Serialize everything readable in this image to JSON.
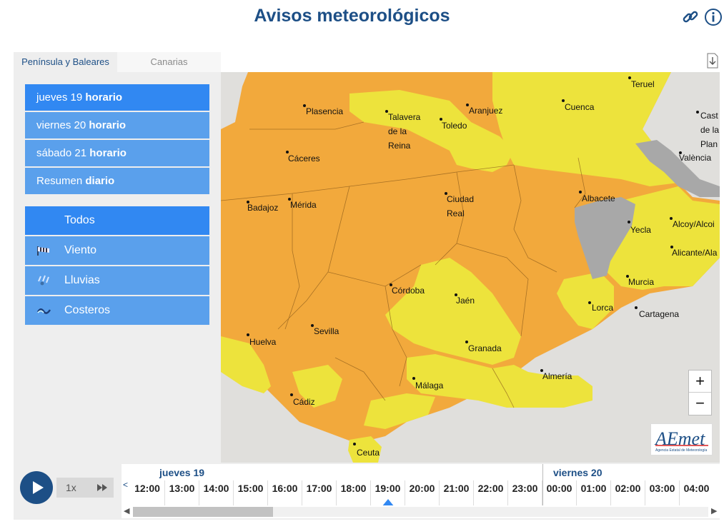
{
  "header": {
    "title": "Avisos meteorológicos"
  },
  "tabs": [
    {
      "label": "Península y Baleares"
    },
    {
      "label": "Canarias"
    }
  ],
  "days": [
    {
      "day": "jueves 19",
      "mode": "horario"
    },
    {
      "day": "viernes 20",
      "mode": "horario"
    },
    {
      "day": "sábado 21",
      "mode": "horario"
    },
    {
      "day": "Resumen",
      "mode": "diario"
    }
  ],
  "types": [
    {
      "label": "Todos",
      "icon": ""
    },
    {
      "label": "Viento",
      "icon": "wind-icon"
    },
    {
      "label": "Lluvias",
      "icon": "rain-icon"
    },
    {
      "label": "Costeros",
      "icon": "wave-icon"
    }
  ],
  "map": {
    "cities": [
      "Teruel",
      "Plasencia",
      "Talavera",
      "de la",
      "Reina",
      "Aranjuez",
      "Toledo",
      "Cuenca",
      "Cast",
      "de la",
      "Plan",
      "València",
      "Cáceres",
      "Ciudad",
      "Real",
      "Albacete",
      "Badajoz",
      "Mérida",
      "Yecla",
      "Alcoy/Alcoi",
      "Alicante/Ala",
      "Córdoba",
      "Jaén",
      "Murcia",
      "Lorca",
      "Cartagena",
      "Sevilla",
      "Huelva",
      "Granada",
      "Almería",
      "Málaga",
      "Cádiz",
      "Ceuta"
    ],
    "zoom_in": "+",
    "zoom_out": "−",
    "colors": {
      "orange": "#f2a93c",
      "yellow": "#ede33c",
      "gray": "#a8a8a8"
    }
  },
  "logo": {
    "text": "AEmet",
    "subtitle": "Agencia Estatal de Meteorología"
  },
  "player": {
    "speed": "1x"
  },
  "timeline": {
    "day1": "jueves 19",
    "day2": "viernes 20",
    "hours_day1": [
      "12:00",
      "13:00",
      "14:00",
      "15:00",
      "16:00",
      "17:00",
      "18:00",
      "19:00",
      "20:00",
      "21:00",
      "22:00",
      "23:00"
    ],
    "hours_day2": [
      "00:00",
      "01:00",
      "02:00",
      "03:00",
      "04:00"
    ],
    "selected": "19:00",
    "prev_arrow": "<"
  }
}
